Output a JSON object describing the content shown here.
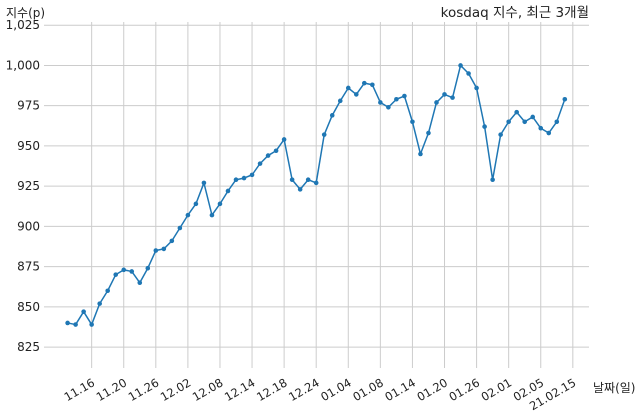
{
  "chart_data": {
    "type": "line",
    "title": "kosdaq 지수, 최근 3개월",
    "ylabel": "지수(p)",
    "xlabel": "날짜(일)",
    "ylim": [
      812,
      1027
    ],
    "y_ticks": [
      825,
      850,
      875,
      900,
      925,
      950,
      975,
      1000,
      1025
    ],
    "y_tick_labels": [
      "825",
      "850",
      "875",
      "900",
      "925",
      "950",
      "975",
      "1,000",
      "1,025"
    ],
    "grid": true,
    "x_tick_labels": [
      "11.16",
      "11.20",
      "11.26",
      "12.02",
      "12.08",
      "12.14",
      "12.18",
      "12.24",
      "01.04",
      "01.08",
      "01.14",
      "01.20",
      "01.26",
      "02.01",
      "02.05",
      "21.02.15"
    ],
    "x_tick_indices": [
      3,
      7,
      11,
      15,
      19,
      23,
      27,
      31,
      35,
      39,
      43,
      47,
      51,
      55,
      59,
      63
    ],
    "series": [
      {
        "color": "#1f77b4",
        "values": [
          840,
          839,
          847,
          839,
          852,
          860,
          870,
          873,
          872,
          865,
          874,
          885,
          886,
          891,
          899,
          907,
          914,
          927,
          907,
          914,
          922,
          929,
          930,
          932,
          939,
          944,
          947,
          954,
          929,
          923,
          929,
          927,
          957,
          969,
          978,
          986,
          982,
          989,
          988,
          977,
          974,
          979,
          981,
          965,
          945,
          958,
          977,
          982,
          980,
          1000,
          995,
          986,
          962,
          929,
          957,
          965,
          971,
          965,
          968,
          961,
          958,
          965,
          979
        ]
      }
    ]
  }
}
